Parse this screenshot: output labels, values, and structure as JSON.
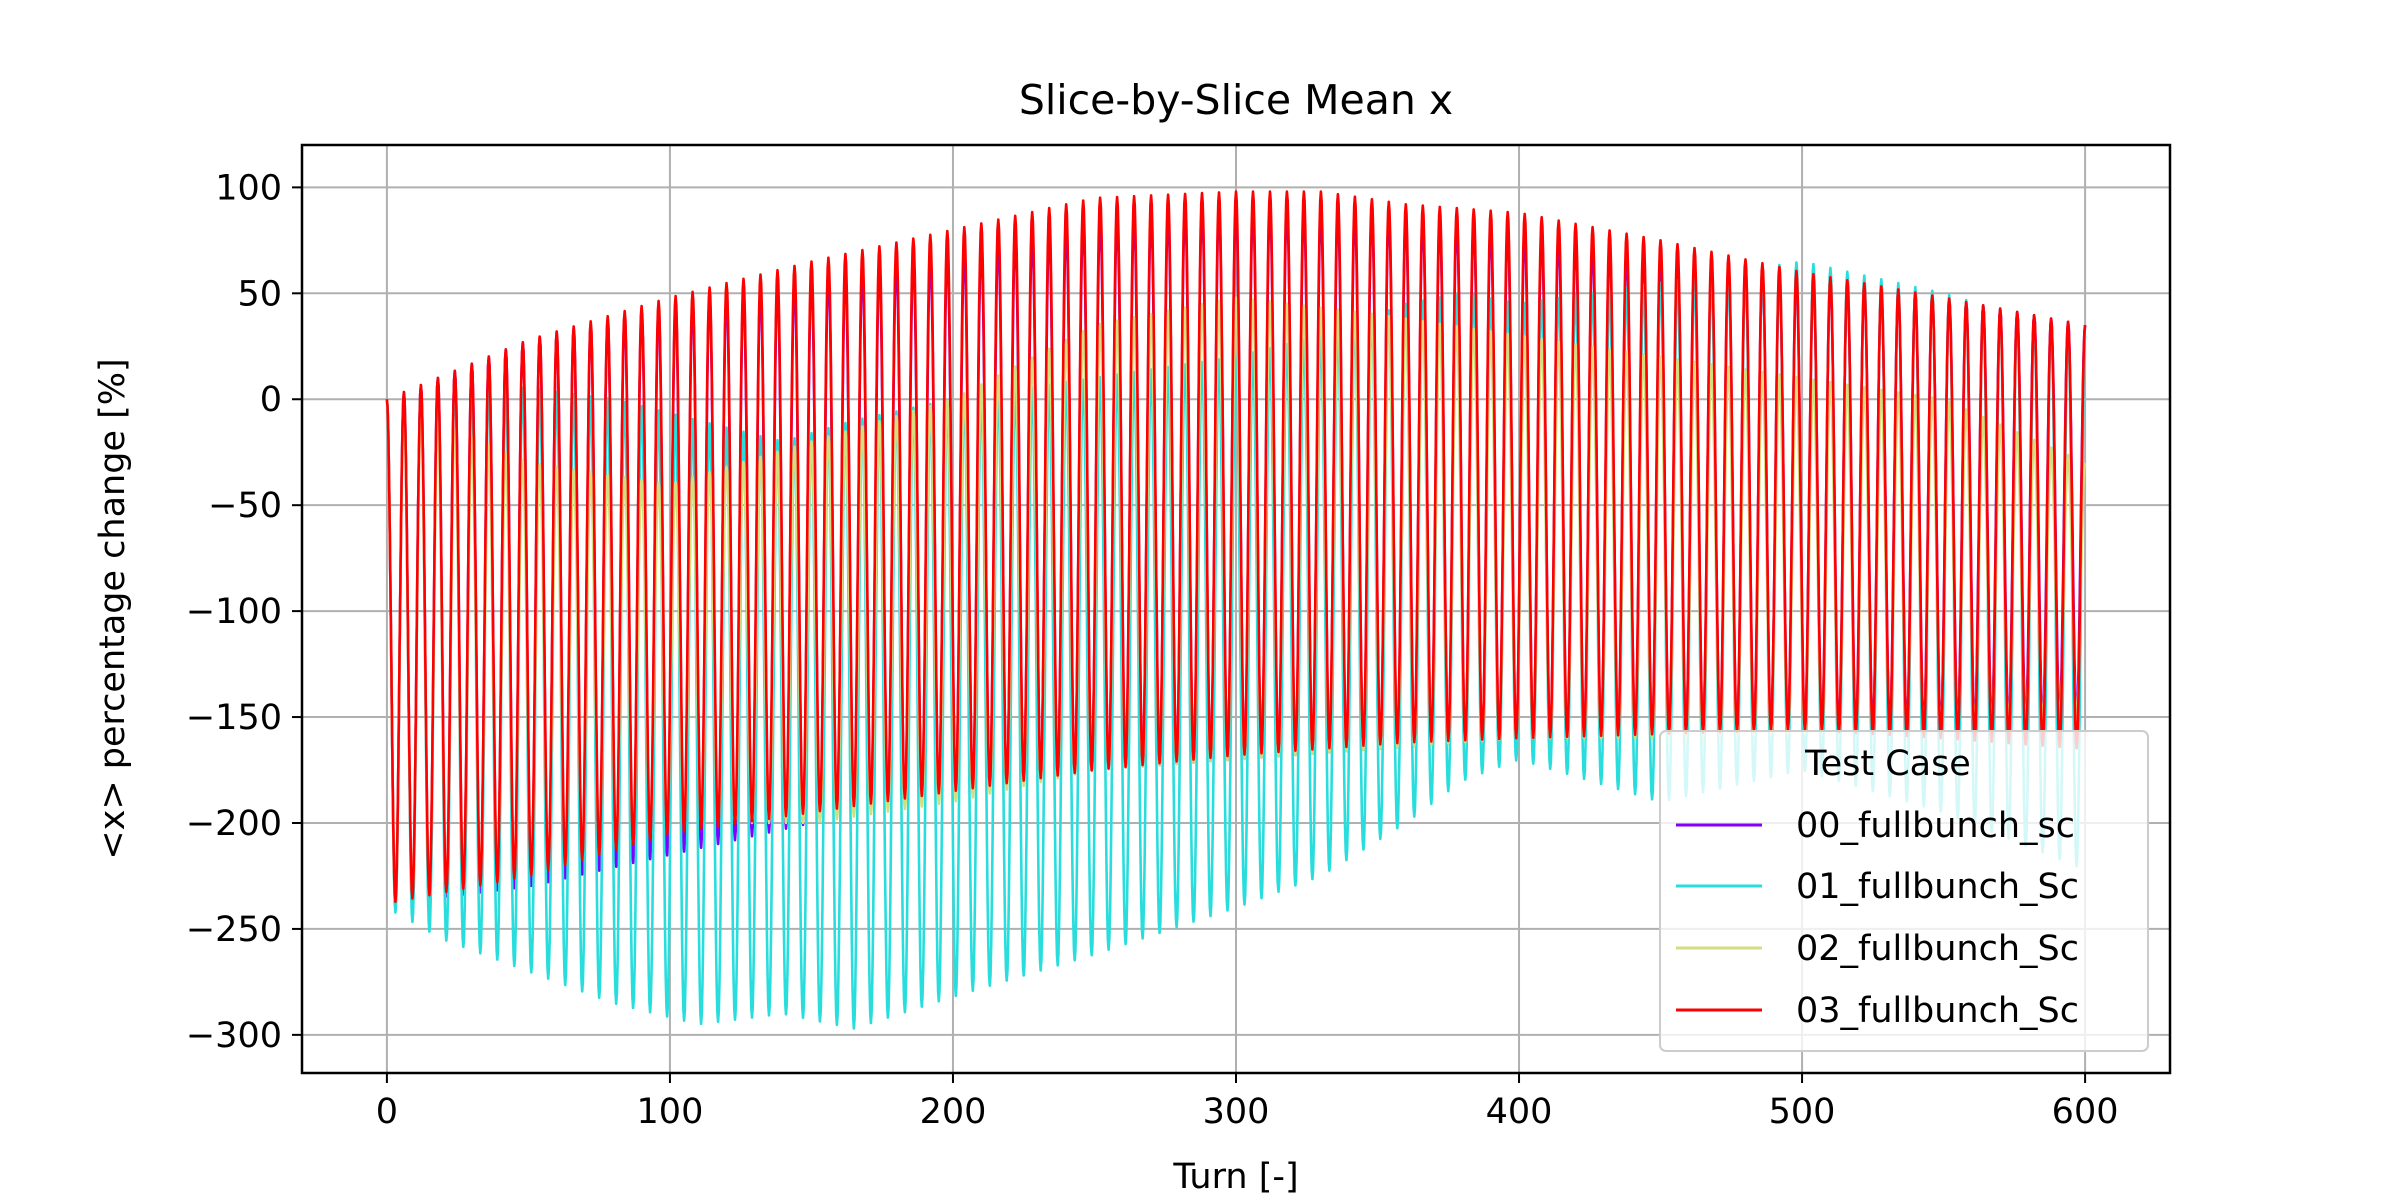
{
  "chart_data": {
    "type": "line",
    "title": "Slice-by-Slice Mean x",
    "xlabel": "Turn [-]",
    "ylabel": "<x> percentage change [%]",
    "xlim": [
      -30,
      630
    ],
    "ylim": [
      -318,
      120
    ],
    "xticks": [
      0,
      100,
      200,
      300,
      400,
      500,
      600
    ],
    "yticks": [
      100,
      50,
      0,
      -50,
      -100,
      -150,
      -200,
      -250,
      -300
    ],
    "xtick_labels": [
      "0",
      "100",
      "200",
      "300",
      "400",
      "500",
      "600"
    ],
    "ytick_labels": [
      "100",
      "50",
      "0",
      "−50",
      "−100",
      "−150",
      "−200",
      "−250",
      "−300"
    ],
    "grid": true,
    "legend": {
      "title": "Test Case",
      "position": "lower right"
    },
    "oscillation_period_turns": 6.0,
    "series": [
      {
        "name": "00_fullbunch_sc",
        "color": "#8000ff",
        "envelope_turns": [
          0,
          50,
          100,
          150,
          200,
          250,
          300,
          350,
          400,
          450,
          500,
          550,
          600
        ],
        "upper": [
          0,
          28,
          45,
          58,
          70,
          85,
          92,
          88,
          80,
          68,
          58,
          48,
          35
        ],
        "lower": [
          -238,
          -230,
          -215,
          -200,
          -185,
          -175,
          -170,
          -165,
          -160,
          -158,
          -155,
          -155,
          -150
        ]
      },
      {
        "name": "01_fullbunch_Sc",
        "color": "#2adddd",
        "envelope_turns": [
          0,
          20,
          50,
          80,
          110,
          140,
          165,
          200,
          250,
          300,
          330,
          360,
          380,
          400,
          450,
          500,
          550,
          600
        ],
        "upper": [
          0,
          8,
          5,
          0,
          -10,
          -20,
          -10,
          0,
          10,
          20,
          30,
          45,
          50,
          45,
          55,
          65,
          50,
          30
        ],
        "lower": [
          -240,
          -255,
          -270,
          -285,
          -295,
          -290,
          -297,
          -282,
          -262,
          -240,
          -225,
          -200,
          -180,
          -170,
          -190,
          -175,
          -195,
          -222
        ]
      },
      {
        "name": "02_fullbunch_Sc",
        "color": "#d4dd80",
        "envelope_turns": [
          0,
          50,
          100,
          150,
          200,
          250,
          300,
          350,
          400,
          450,
          500,
          550,
          600
        ],
        "upper": [
          0,
          -30,
          -40,
          -20,
          0,
          35,
          48,
          40,
          30,
          20,
          10,
          0,
          -30
        ],
        "lower": [
          -238,
          -220,
          -200,
          -200,
          -190,
          -175,
          -170,
          -165,
          -160,
          -160,
          -158,
          -155,
          -150
        ]
      },
      {
        "name": "03_fullbunch_Sc",
        "color": "#ff0000",
        "envelope_turns": [
          0,
          50,
          100,
          150,
          200,
          250,
          300,
          330,
          360,
          400,
          450,
          500,
          550,
          600
        ],
        "upper": [
          0,
          28,
          48,
          65,
          80,
          95,
          98,
          98,
          92,
          88,
          75,
          60,
          48,
          35
        ],
        "lower": [
          -238,
          -225,
          -205,
          -195,
          -185,
          -175,
          -168,
          -165,
          -162,
          -160,
          -158,
          -156,
          -160,
          -165
        ]
      }
    ]
  }
}
